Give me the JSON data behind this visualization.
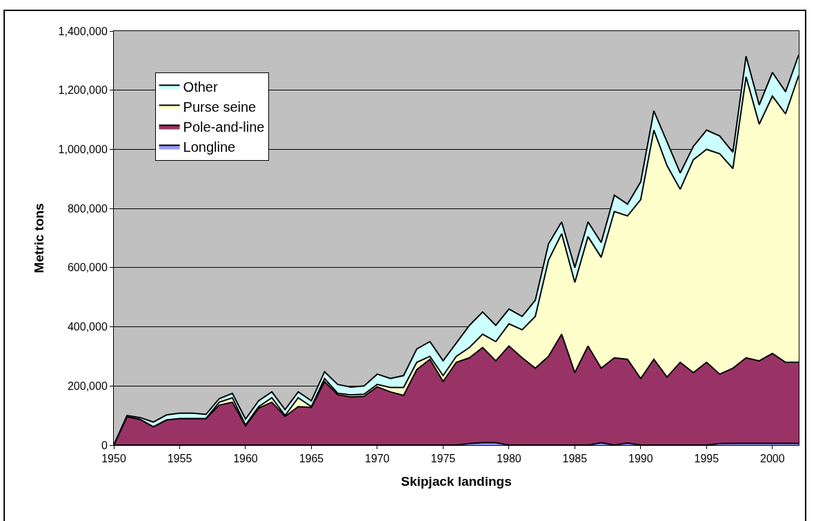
{
  "chart_data": {
    "type": "area",
    "stacked": true,
    "xlabel": "Skipjack landings",
    "ylabel": "Metric tons",
    "x": [
      1950,
      1951,
      1952,
      1953,
      1954,
      1955,
      1956,
      1957,
      1958,
      1959,
      1960,
      1961,
      1962,
      1963,
      1964,
      1965,
      1966,
      1967,
      1968,
      1969,
      1970,
      1971,
      1972,
      1973,
      1974,
      1975,
      1976,
      1977,
      1978,
      1979,
      1980,
      1981,
      1982,
      1983,
      1984,
      1985,
      1986,
      1987,
      1988,
      1989,
      1990,
      1991,
      1992,
      1993,
      1994,
      1995,
      1996,
      1997,
      1998,
      1999,
      2000,
      2001,
      2002
    ],
    "series": [
      {
        "name": "Longline",
        "color": "#9999ff",
        "values": [
          0,
          0,
          0,
          0,
          0,
          0,
          0,
          0,
          0,
          0,
          0,
          0,
          0,
          0,
          0,
          0,
          0,
          0,
          0,
          0,
          0,
          0,
          0,
          0,
          0,
          0,
          0,
          5000,
          8000,
          8000,
          0,
          0,
          0,
          0,
          0,
          0,
          0,
          8000,
          0,
          7000,
          0,
          0,
          0,
          0,
          0,
          0,
          5000,
          6000,
          6000,
          6000,
          6000,
          6000,
          6000
        ]
      },
      {
        "name": "Pole-and-line",
        "color": "#993366",
        "values": [
          0,
          96000,
          87000,
          62000,
          85000,
          90000,
          90000,
          90000,
          135000,
          145000,
          65000,
          125000,
          145000,
          97000,
          130000,
          127000,
          215000,
          170000,
          163000,
          165000,
          197000,
          180000,
          168000,
          255000,
          290000,
          215000,
          280000,
          290000,
          322000,
          277000,
          335000,
          295000,
          260000,
          300000,
          375000,
          245000,
          335000,
          252000,
          295000,
          283000,
          225000,
          290000,
          230000,
          280000,
          245000,
          280000,
          235000,
          254000,
          289000,
          279000,
          304000,
          274000,
          274000
        ]
      },
      {
        "name": "Purse seine",
        "color": "#ffffcc",
        "values": [
          0,
          0,
          0,
          0,
          0,
          0,
          0,
          0,
          10000,
          15000,
          3000,
          5000,
          15000,
          3000,
          30000,
          3000,
          10000,
          5000,
          7000,
          7000,
          8000,
          15000,
          27000,
          25000,
          10000,
          20000,
          20000,
          35000,
          45000,
          65000,
          75000,
          95000,
          175000,
          325000,
          340000,
          305000,
          370000,
          375000,
          495000,
          485000,
          605000,
          775000,
          715000,
          585000,
          720000,
          720000,
          745000,
          675000,
          950000,
          800000,
          870000,
          840000,
          970000
        ]
      },
      {
        "name": "Other",
        "color": "#ccffff",
        "values": [
          0,
          4000,
          6000,
          16000,
          17000,
          18000,
          18000,
          14000,
          12000,
          15000,
          20000,
          20000,
          20000,
          20000,
          20000,
          20000,
          23000,
          30000,
          26000,
          28000,
          35000,
          30000,
          40000,
          45000,
          50000,
          50000,
          45000,
          75000,
          75000,
          55000,
          50000,
          45000,
          55000,
          55000,
          40000,
          50000,
          50000,
          50000,
          55000,
          40000,
          60000,
          65000,
          80000,
          55000,
          45000,
          65000,
          60000,
          55000,
          70000,
          65000,
          80000,
          75000,
          70000
        ]
      }
    ],
    "xlim": [
      1950,
      2002
    ],
    "xticks": [
      1950,
      1955,
      1960,
      1965,
      1970,
      1975,
      1980,
      1985,
      1990,
      1995,
      2000
    ],
    "ylim": [
      0,
      1400000
    ],
    "yticks": [
      0,
      {
        "value": 200000,
        "label": "200,000"
      },
      {
        "value": 400000,
        "label": "400,000"
      },
      {
        "value": 600000,
        "label": "600,000"
      },
      {
        "value": 800000,
        "label": "800,000"
      },
      {
        "value": 1000000,
        "label": "1,000,000"
      },
      {
        "value": 1200000,
        "label": "1,200,000"
      },
      {
        "value": 1400000,
        "label": "1,400,000"
      }
    ],
    "grid": "y",
    "legend": "top left",
    "marker": "none",
    "line_style": "solid"
  }
}
